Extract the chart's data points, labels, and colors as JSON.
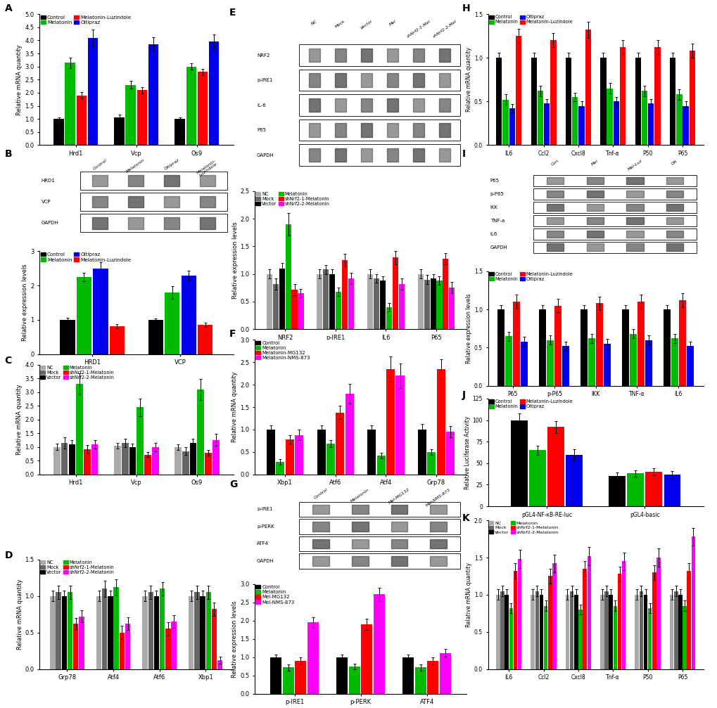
{
  "A": {
    "ylabel": "Relative mRNA quantity",
    "genes": [
      "Hrd1",
      "Vcp",
      "Os9"
    ],
    "groups": [
      "Control",
      "Melatonin",
      "Melatonin-Luzindole",
      "Oltipraz"
    ],
    "colors": [
      "#000000",
      "#00bb00",
      "#ff0000",
      "#0000ee"
    ],
    "values": [
      [
        1.0,
        3.15,
        1.9,
        4.1
      ],
      [
        1.05,
        2.3,
        2.1,
        3.85
      ],
      [
        1.0,
        3.0,
        2.8,
        3.95
      ]
    ],
    "errors": [
      [
        0.05,
        0.2,
        0.12,
        0.32
      ],
      [
        0.12,
        0.15,
        0.12,
        0.28
      ],
      [
        0.05,
        0.12,
        0.12,
        0.28
      ]
    ],
    "ylim": [
      0,
      5.0
    ],
    "yticks": [
      0.0,
      0.5,
      1.0,
      1.5,
      2.0,
      2.5,
      3.0,
      3.5,
      4.0,
      4.5,
      5.0
    ]
  },
  "B_bar": {
    "ylabel": "Relative expression levels",
    "genes": [
      "HRD1",
      "VCP"
    ],
    "groups": [
      "Control",
      "Melatonin",
      "Oltipraz",
      "Melatonin-Luzindole"
    ],
    "colors": [
      "#000000",
      "#00bb00",
      "#0000ee",
      "#ff0000"
    ],
    "values": [
      [
        1.0,
        2.25,
        2.5,
        0.82
      ],
      [
        1.0,
        1.8,
        2.3,
        0.85
      ]
    ],
    "errors": [
      [
        0.05,
        0.12,
        0.18,
        0.06
      ],
      [
        0.04,
        0.18,
        0.14,
        0.06
      ]
    ],
    "ylim": [
      0,
      3.0
    ],
    "yticks": [
      0,
      1,
      2,
      3
    ]
  },
  "C": {
    "ylabel": "Relative mRNA quantity",
    "genes": [
      "Hrd1",
      "Vcp",
      "Os9"
    ],
    "groups": [
      "NC",
      "Mock",
      "Vector",
      "Melatonin",
      "shNrf2-1-Melatonin",
      "shNrf2-2-Melatonin"
    ],
    "colors": [
      "#aaaaaa",
      "#666666",
      "#000000",
      "#00bb00",
      "#ff0000",
      "#ff00ff"
    ],
    "values": [
      [
        1.0,
        1.15,
        1.1,
        3.3,
        0.92,
        1.1
      ],
      [
        1.05,
        1.15,
        1.0,
        2.45,
        0.72,
        1.0
      ],
      [
        1.0,
        0.85,
        1.15,
        3.1,
        0.78,
        1.25
      ]
    ],
    "errors": [
      [
        0.12,
        0.2,
        0.15,
        0.38,
        0.15,
        0.15
      ],
      [
        0.1,
        0.15,
        0.12,
        0.32,
        0.1,
        0.15
      ],
      [
        0.1,
        0.15,
        0.15,
        0.38,
        0.1,
        0.22
      ]
    ],
    "ylim": [
      0,
      4.0
    ],
    "yticks": [
      0.0,
      0.5,
      1.0,
      1.5,
      2.0,
      2.5,
      3.0,
      3.5,
      4.0
    ]
  },
  "D": {
    "ylabel": "Relative mRNA quantity",
    "genes": [
      "Grp78",
      "Atf4",
      "Atf6",
      "Xbp1"
    ],
    "groups": [
      "NC",
      "Mock",
      "Vector",
      "Melatonin",
      "shNrf2-1-Melatonin",
      "shNrf2-2-Melatonin"
    ],
    "colors": [
      "#aaaaaa",
      "#666666",
      "#000000",
      "#00bb00",
      "#ff0000",
      "#ff00ff"
    ],
    "values": [
      [
        1.0,
        1.05,
        1.0,
        1.05,
        0.62,
        0.72
      ],
      [
        1.0,
        1.1,
        1.0,
        1.12,
        0.5,
        0.62
      ],
      [
        1.0,
        1.05,
        1.0,
        1.1,
        0.55,
        0.65
      ],
      [
        1.0,
        1.05,
        1.0,
        1.05,
        0.82,
        0.12
      ]
    ],
    "errors": [
      [
        0.07,
        0.09,
        0.07,
        0.09,
        0.08,
        0.08
      ],
      [
        0.07,
        0.11,
        0.07,
        0.11,
        0.09,
        0.09
      ],
      [
        0.07,
        0.09,
        0.07,
        0.09,
        0.09,
        0.09
      ],
      [
        0.07,
        0.09,
        0.07,
        0.09,
        0.09,
        0.05
      ]
    ],
    "ylim": [
      0,
      1.5
    ],
    "yticks": [
      0.0,
      0.5,
      1.0,
      1.5
    ]
  },
  "E_bar": {
    "ylabel": "Relative expression levels",
    "genes": [
      "NRF2",
      "p-IRE1",
      "IL6",
      "P65"
    ],
    "groups": [
      "NC",
      "Mock",
      "Vector",
      "Melatonin",
      "shNrf2-1-Melatonin",
      "shNrf2-2-Melatonin"
    ],
    "colors": [
      "#aaaaaa",
      "#666666",
      "#000000",
      "#00bb00",
      "#ff0000",
      "#ff00ff"
    ],
    "values": [
      [
        1.0,
        0.82,
        1.1,
        1.9,
        0.72,
        0.65
      ],
      [
        1.0,
        1.08,
        1.0,
        0.68,
        1.25,
        0.92
      ],
      [
        1.0,
        0.92,
        0.88,
        0.4,
        1.3,
        0.82
      ],
      [
        1.0,
        0.9,
        0.92,
        0.88,
        1.28,
        0.75
      ]
    ],
    "errors": [
      [
        0.08,
        0.1,
        0.1,
        0.2,
        0.1,
        0.08
      ],
      [
        0.08,
        0.08,
        0.08,
        0.08,
        0.12,
        0.1
      ],
      [
        0.08,
        0.08,
        0.08,
        0.08,
        0.12,
        0.1
      ],
      [
        0.08,
        0.08,
        0.08,
        0.08,
        0.1,
        0.1
      ]
    ],
    "ylim": [
      0,
      2.5
    ],
    "yticks": [
      0.0,
      0.5,
      1.0,
      1.5,
      2.0,
      2.5
    ]
  },
  "F": {
    "ylabel": "Relative mRNA quantity",
    "genes": [
      "Xbp1",
      "Atf6",
      "Atf4",
      "Grp78"
    ],
    "groups": [
      "Control",
      "Melatonin",
      "Melatonin-MG132",
      "Melatonin-NMS-873"
    ],
    "colors": [
      "#000000",
      "#00bb00",
      "#ff0000",
      "#ff00ff"
    ],
    "values": [
      [
        1.0,
        0.28,
        0.78,
        0.88
      ],
      [
        1.0,
        0.68,
        1.38,
        1.8
      ],
      [
        1.0,
        0.42,
        2.35,
        2.2
      ],
      [
        1.0,
        0.5,
        2.35,
        0.95
      ]
    ],
    "errors": [
      [
        0.1,
        0.06,
        0.1,
        0.12
      ],
      [
        0.1,
        0.08,
        0.15,
        0.22
      ],
      [
        0.1,
        0.06,
        0.28,
        0.28
      ],
      [
        0.12,
        0.06,
        0.22,
        0.12
      ]
    ],
    "ylim": [
      0,
      3.0
    ],
    "yticks": [
      0.0,
      0.5,
      1.0,
      1.5,
      2.0,
      2.5,
      3.0
    ]
  },
  "G_bar": {
    "ylabel": "Relative expression levels",
    "genes": [
      "p-IRE1",
      "p-PERK",
      "ATF4"
    ],
    "groups": [
      "Control",
      "Melatonin",
      "Mel-MG132",
      "Mel-NMS-873"
    ],
    "colors": [
      "#000000",
      "#00bb00",
      "#ff0000",
      "#ff00ff"
    ],
    "values": [
      [
        1.0,
        0.72,
        0.9,
        1.95
      ],
      [
        1.0,
        0.75,
        1.9,
        2.72
      ],
      [
        1.0,
        0.72,
        0.9,
        1.12
      ]
    ],
    "errors": [
      [
        0.08,
        0.08,
        0.1,
        0.15
      ],
      [
        0.08,
        0.08,
        0.15,
        0.18
      ],
      [
        0.08,
        0.08,
        0.1,
        0.1
      ]
    ],
    "ylim": [
      0,
      3.0
    ],
    "yticks": [
      0.0,
      0.5,
      1.0,
      1.5,
      2.0,
      2.5,
      3.0
    ]
  },
  "H": {
    "ylabel": "Relative mRNA quantity",
    "genes": [
      "IL6",
      "Ccl2",
      "Cxcl8",
      "Tnf-α",
      "P50",
      "P65"
    ],
    "groups": [
      "Control",
      "Melatonin",
      "Oltipraz",
      "Melatonin-Luzindole"
    ],
    "colors": [
      "#000000",
      "#00bb00",
      "#0000ee",
      "#ff0000"
    ],
    "values": [
      [
        1.0,
        0.52,
        0.42,
        1.25
      ],
      [
        1.0,
        0.62,
        0.48,
        1.2
      ],
      [
        1.0,
        0.55,
        0.45,
        1.32
      ],
      [
        1.0,
        0.65,
        0.5,
        1.12
      ],
      [
        1.0,
        0.62,
        0.48,
        1.12
      ],
      [
        1.0,
        0.58,
        0.45,
        1.08
      ]
    ],
    "errors": [
      [
        0.06,
        0.06,
        0.05,
        0.08
      ],
      [
        0.06,
        0.06,
        0.05,
        0.08
      ],
      [
        0.06,
        0.05,
        0.05,
        0.09
      ],
      [
        0.06,
        0.06,
        0.05,
        0.08
      ],
      [
        0.06,
        0.06,
        0.05,
        0.08
      ],
      [
        0.06,
        0.06,
        0.05,
        0.08
      ]
    ],
    "ylim": [
      0,
      1.5
    ],
    "yticks": [
      0.0,
      0.5,
      1.0,
      1.5
    ]
  },
  "I_bar": {
    "ylabel": "Relative expression levels",
    "genes": [
      "P65",
      "p-P65",
      "IKK",
      "TNF-α",
      "IL6"
    ],
    "groups": [
      "Control",
      "Melatonin",
      "Melatonin-Luzindole",
      "Oltipraz"
    ],
    "colors": [
      "#000000",
      "#00bb00",
      "#ff0000",
      "#0000ee"
    ],
    "values": [
      [
        1.0,
        0.65,
        1.1,
        0.58
      ],
      [
        1.0,
        0.6,
        1.05,
        0.52
      ],
      [
        1.0,
        0.62,
        1.08,
        0.55
      ],
      [
        1.0,
        0.68,
        1.1,
        0.6
      ],
      [
        1.0,
        0.62,
        1.12,
        0.52
      ]
    ],
    "errors": [
      [
        0.06,
        0.06,
        0.09,
        0.06
      ],
      [
        0.06,
        0.06,
        0.09,
        0.06
      ],
      [
        0.06,
        0.06,
        0.09,
        0.06
      ],
      [
        0.06,
        0.06,
        0.09,
        0.06
      ],
      [
        0.06,
        0.06,
        0.09,
        0.06
      ]
    ],
    "ylim": [
      0,
      1.5
    ],
    "yticks": [
      0.0,
      0.5,
      1.0,
      1.5
    ]
  },
  "J": {
    "ylabel": "Relative Luciferase Activity",
    "genes": [
      "pGL4-NF-κB-RE-luc",
      "pGL4-basic"
    ],
    "groups": [
      "Control",
      "Melatonin",
      "Melatonin-Luzindole",
      "Oltipraz"
    ],
    "colors": [
      "#000000",
      "#00bb00",
      "#ff0000",
      "#0000ee"
    ],
    "values": [
      [
        100,
        65,
        92,
        60
      ],
      [
        35,
        38,
        40,
        37
      ]
    ],
    "errors": [
      [
        8,
        5,
        7,
        6
      ],
      [
        4,
        4,
        4,
        4
      ]
    ],
    "ylim": [
      0,
      125
    ],
    "yticks": [
      0,
      25,
      50,
      75,
      100,
      125
    ]
  },
  "K": {
    "ylabel": "Relative mRNA quantity",
    "genes": [
      "IL6",
      "Ccl2",
      "Cxcl8",
      "Tnf-α",
      "P50",
      "P65"
    ],
    "groups": [
      "NC",
      "Mock",
      "Vector",
      "Melatonin",
      "shNrf2-1-Melatonin",
      "shNrf2-2-Melatonin"
    ],
    "colors": [
      "#aaaaaa",
      "#666666",
      "#000000",
      "#00bb00",
      "#ff0000",
      "#ff00ff"
    ],
    "values": [
      [
        1.0,
        1.05,
        1.0,
        0.82,
        1.32,
        1.48
      ],
      [
        1.0,
        1.05,
        1.0,
        0.85,
        1.25,
        1.42
      ],
      [
        1.0,
        1.05,
        1.0,
        0.8,
        1.35,
        1.52
      ],
      [
        1.0,
        1.05,
        1.0,
        0.85,
        1.28,
        1.45
      ],
      [
        1.0,
        1.05,
        1.0,
        0.82,
        1.3,
        1.5
      ],
      [
        1.0,
        1.05,
        1.0,
        0.85,
        1.32,
        1.78
      ]
    ],
    "errors": [
      [
        0.07,
        0.07,
        0.07,
        0.07,
        0.1,
        0.12
      ],
      [
        0.07,
        0.07,
        0.07,
        0.07,
        0.1,
        0.12
      ],
      [
        0.07,
        0.07,
        0.07,
        0.07,
        0.1,
        0.12
      ],
      [
        0.07,
        0.07,
        0.07,
        0.07,
        0.1,
        0.12
      ],
      [
        0.07,
        0.07,
        0.07,
        0.07,
        0.1,
        0.12
      ],
      [
        0.07,
        0.07,
        0.07,
        0.07,
        0.1,
        0.12
      ]
    ],
    "ylim": [
      0,
      2.0
    ],
    "yticks": [
      0.0,
      0.5,
      1.0,
      1.5,
      2.0
    ]
  },
  "blot_B": {
    "labels": [
      "HRD1",
      "VCP",
      "GAPDH"
    ],
    "col_labels": [
      "Control",
      "Melatonin",
      "Oltipraz",
      "Melatonin-\nLuzindole"
    ]
  },
  "blot_E": {
    "labels": [
      "NRF2",
      "p-IRE1",
      "IL-6",
      "P65",
      "GAPDH"
    ],
    "col_labels": [
      "NC",
      "Mock",
      "Vector",
      "Mel",
      "shNrf2-1-Mel",
      "shNrf2-2-Mel"
    ]
  },
  "blot_G": {
    "labels": [
      "p-IRE1",
      "p-PERK",
      "ATF4",
      "GAPDH"
    ],
    "col_labels": [
      "Control",
      "Melatonin",
      "Mel-MG132",
      "Mel-NMS-873"
    ]
  },
  "blot_I": {
    "labels": [
      "P65",
      "p-P65",
      "IKK",
      "TNF-a",
      "IL6",
      "GAPDH"
    ],
    "col_labels": [
      "Con",
      "Mel",
      "Mel-Luz",
      "Olt"
    ]
  }
}
